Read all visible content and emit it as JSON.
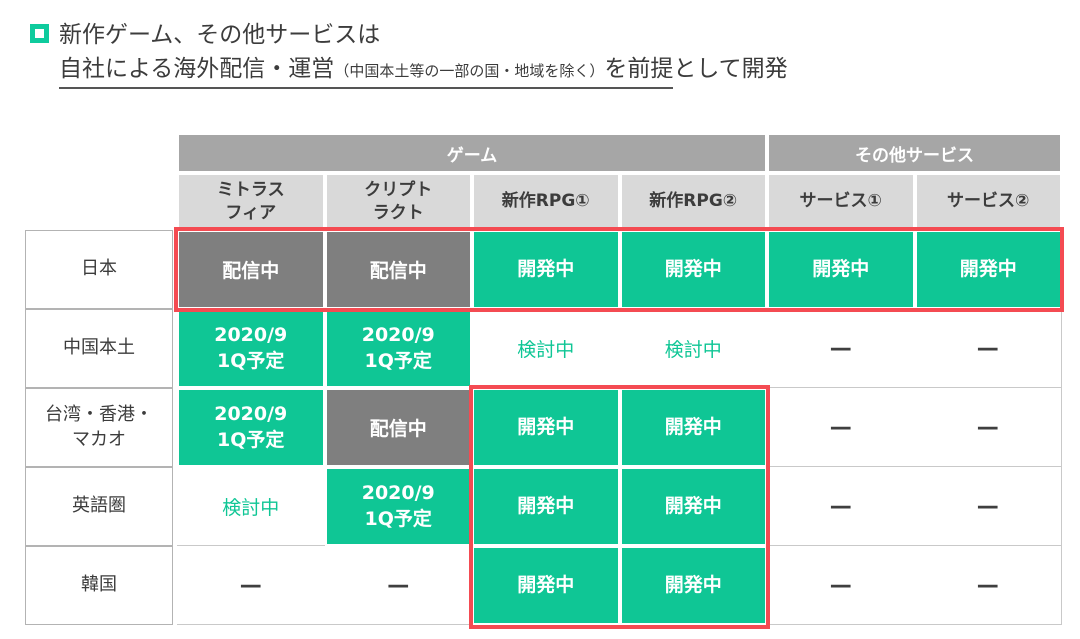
{
  "slide": {
    "title_line1": "新作ゲーム、その他サービスは",
    "title_line2": {
      "underlined_main": "自社による海外配信・運営",
      "underlined_note": "（中国本土等の一部の国・地域を除く）",
      "underlined_tail": "を前提",
      "rest": "として開発"
    }
  },
  "table": {
    "group_headers": [
      {
        "label": "ゲーム",
        "span": 4
      },
      {
        "label": "その他サービス",
        "span": 2
      }
    ],
    "column_headers": [
      "ミトラス\nフィア",
      "クリプト\nラクト",
      "新作RPG①",
      "新作RPG②",
      "サービス①",
      "サービス②"
    ],
    "rows": [
      {
        "region": "日本",
        "cells": [
          {
            "text": "配信中",
            "style": "gray"
          },
          {
            "text": "配信中",
            "style": "gray"
          },
          {
            "text": "開発中",
            "style": "green"
          },
          {
            "text": "開発中",
            "style": "green"
          },
          {
            "text": "開発中",
            "style": "green"
          },
          {
            "text": "開発中",
            "style": "green"
          }
        ]
      },
      {
        "region": "中国本土",
        "cells": [
          {
            "text": "2020/9\n1Q予定",
            "style": "green"
          },
          {
            "text": "2020/9\n1Q予定",
            "style": "green"
          },
          {
            "text": "検討中",
            "style": "green-text"
          },
          {
            "text": "検討中",
            "style": "green-text"
          },
          {
            "text": "—",
            "style": "dash"
          },
          {
            "text": "—",
            "style": "dash"
          }
        ]
      },
      {
        "region": "台湾・香港・\nマカオ",
        "cells": [
          {
            "text": "2020/9\n1Q予定",
            "style": "green"
          },
          {
            "text": "配信中",
            "style": "gray"
          },
          {
            "text": "開発中",
            "style": "green"
          },
          {
            "text": "開発中",
            "style": "green"
          },
          {
            "text": "—",
            "style": "dash"
          },
          {
            "text": "—",
            "style": "dash"
          }
        ]
      },
      {
        "region": "英語圏",
        "cells": [
          {
            "text": "検討中",
            "style": "green-text"
          },
          {
            "text": "2020/9\n1Q予定",
            "style": "green"
          },
          {
            "text": "開発中",
            "style": "green"
          },
          {
            "text": "開発中",
            "style": "green"
          },
          {
            "text": "—",
            "style": "dash"
          },
          {
            "text": "—",
            "style": "dash"
          }
        ]
      },
      {
        "region": "韓国",
        "cells": [
          {
            "text": "—",
            "style": "dash"
          },
          {
            "text": "—",
            "style": "dash"
          },
          {
            "text": "開発中",
            "style": "green"
          },
          {
            "text": "開発中",
            "style": "green"
          },
          {
            "text": "—",
            "style": "dash"
          },
          {
            "text": "—",
            "style": "dash"
          }
        ]
      }
    ],
    "highlights": [
      {
        "name": "japan-row-box",
        "description": "red box around all six status cells of the 日本 row"
      },
      {
        "name": "new-rpg-box",
        "description": "red box around 新作RPG①/② columns for 台湾・香港・マカオ, 英語圏, 韓国 rows"
      }
    ]
  },
  "colors": {
    "green": "#0FC695",
    "gray": "#7F7F7F",
    "red": "#F44B52",
    "group_header_bg": "#A6A6A6",
    "column_header_bg": "#D9D9D9"
  }
}
